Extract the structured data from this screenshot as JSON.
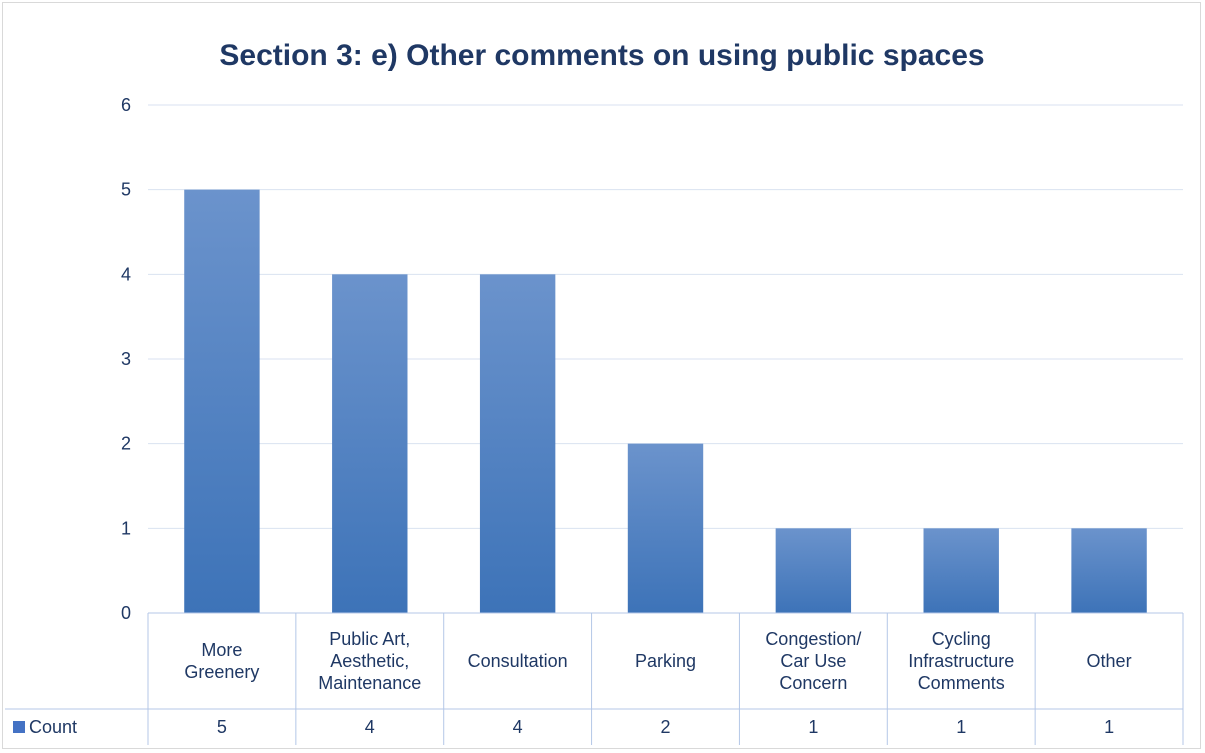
{
  "chart_data": {
    "type": "bar",
    "title": "Section 3: e) Other comments on using public spaces",
    "categories": [
      [
        "More",
        "Greenery"
      ],
      [
        "Public Art,",
        "Aesthetic,",
        "Maintenance"
      ],
      [
        "Consultation"
      ],
      [
        "Parking"
      ],
      [
        "Congestion/",
        "Car Use",
        "Concern"
      ],
      [
        "Cycling",
        "Infrastructure",
        "Comments"
      ],
      [
        "Other"
      ]
    ],
    "series": [
      {
        "name": "Count",
        "values": [
          5,
          4,
          4,
          2,
          1,
          1,
          1
        ]
      }
    ],
    "ylim": [
      0,
      6
    ],
    "yticks": [
      0,
      1,
      2,
      3,
      4,
      5,
      6
    ],
    "grid": true,
    "data_table": true,
    "colors": {
      "bar_top": "#6b93cc",
      "bar_bottom": "#3d73b8",
      "grid": "#d9e2f0",
      "text": "#1f3864",
      "table_border": "#b4c7e7",
      "legend_key": "#4472c4"
    }
  }
}
